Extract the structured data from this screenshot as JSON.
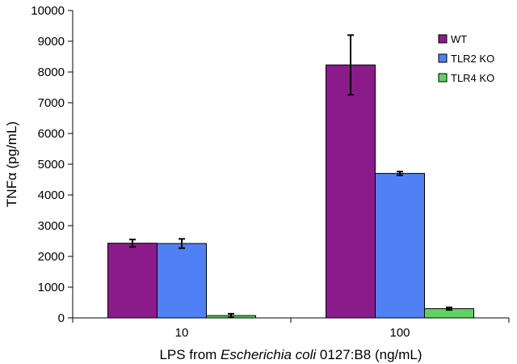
{
  "chart_data": {
    "type": "bar",
    "categories": [
      "10",
      "100"
    ],
    "series": [
      {
        "name": "WT",
        "color": "#8b1a8b",
        "values": [
          2430,
          8230
        ],
        "errors": [
          120,
          970
        ]
      },
      {
        "name": "TLR2 KO",
        "color": "#4f81f5",
        "values": [
          2420,
          4700
        ],
        "errors": [
          150,
          60
        ]
      },
      {
        "name": "TLR4 KO",
        "color": "#5fd35f",
        "values": [
          75,
          300
        ],
        "errors": [
          60,
          40
        ]
      }
    ],
    "ylabel": "TNFα (pg/mL)",
    "xlabel_parts": [
      "LPS from ",
      "Escherichia coli",
      " 0127:B8 (ng/mL)"
    ],
    "ylim": [
      0,
      10000
    ],
    "yticks": [
      0,
      1000,
      2000,
      3000,
      4000,
      5000,
      6000,
      7000,
      8000,
      9000,
      10000
    ],
    "grid": false,
    "legend_position": "top-right"
  }
}
